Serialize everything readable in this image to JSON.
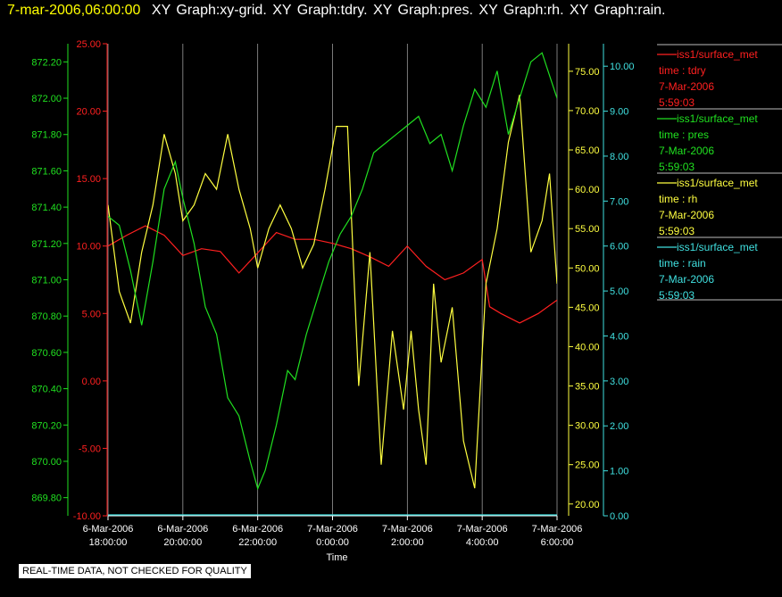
{
  "header": {
    "timestamp": "7-mar-2006,06:00:00",
    "graphs": "XY Graph:xy-grid.  XY Graph:tdry.  XY Graph:pres.  XY Graph:rh.  XY Graph:rain."
  },
  "footer": {
    "quality_note": "REAL-TIME DATA, NOT CHECKED FOR QUALITY"
  },
  "chart_data": {
    "type": "line",
    "title": "",
    "xlabel": "Time",
    "x_ticks": [
      {
        "line1": "6-Mar-2006",
        "line2": "18:00:00"
      },
      {
        "line1": "6-Mar-2006",
        "line2": "20:00:00"
      },
      {
        "line1": "6-Mar-2006",
        "line2": "22:00:00"
      },
      {
        "line1": "7-Mar-2006",
        "line2": "0:00:00"
      },
      {
        "line1": "7-Mar-2006",
        "line2": "2:00:00"
      },
      {
        "line1": "7-Mar-2006",
        "line2": "4:00:00"
      },
      {
        "line1": "7-Mar-2006",
        "line2": "6:00:00"
      }
    ],
    "xlim": [
      0,
      12
    ],
    "grid": "vertical",
    "axes": {
      "tdry": {
        "color": "#ff2020",
        "ylim": [
          -10,
          25
        ],
        "ticks": [
          "-10.00",
          "-5.00",
          "0.00",
          "5.00",
          "10.00",
          "15.00",
          "20.00",
          "25.00"
        ]
      },
      "pres": {
        "color": "#20e020",
        "ylim": [
          869.7,
          872.3
        ],
        "ticks": [
          "869.80",
          "870.00",
          "870.20",
          "870.40",
          "870.60",
          "870.80",
          "871.00",
          "871.20",
          "871.40",
          "871.60",
          "871.80",
          "872.00",
          "872.20"
        ]
      },
      "rh": {
        "color": "#ffff40",
        "ylim": [
          18.5,
          78.5
        ],
        "ticks": [
          "20.00",
          "25.00",
          "30.00",
          "35.00",
          "40.00",
          "45.00",
          "50.00",
          "55.00",
          "60.00",
          "65.00",
          "70.00",
          "75.00"
        ]
      },
      "rain": {
        "color": "#40e0e0",
        "ylim": [
          0,
          10.5
        ],
        "ticks": [
          "0.00",
          "1.00",
          "2.00",
          "3.00",
          "4.00",
          "5.00",
          "6.00",
          "7.00",
          "8.00",
          "9.00",
          "10.00"
        ]
      }
    },
    "legend": [
      {
        "name": "iss1/surface_met",
        "var": "time : tdry",
        "date": "7-Mar-2006",
        "time": "5:59:03",
        "color": "#ff2020"
      },
      {
        "name": "iss1/surface_met",
        "var": "time : pres",
        "date": "7-Mar-2006",
        "time": "5:59:03",
        "color": "#20e020"
      },
      {
        "name": "iss1/surface_met",
        "var": "time : rh",
        "date": "7-Mar-2006",
        "time": "5:59:03",
        "color": "#ffff40"
      },
      {
        "name": "iss1/surface_met",
        "var": "time : rain",
        "date": "7-Mar-2006",
        "time": "5:59:03",
        "color": "#40e0e0"
      }
    ],
    "series": [
      {
        "axis": "tdry",
        "x": [
          0,
          0.5,
          1,
          1.5,
          2,
          2.5,
          3,
          3.5,
          4,
          4.5,
          5,
          5.5,
          6,
          6.5,
          7,
          7.5,
          8,
          8.5,
          9,
          9.5,
          10,
          10.2,
          10.5,
          11,
          11.5,
          12
        ],
        "y": [
          10,
          10.8,
          11.5,
          10.8,
          9.3,
          9.8,
          9.6,
          8,
          9.5,
          11,
          10.5,
          10.5,
          10.2,
          9.8,
          9.2,
          8.5,
          10,
          8.5,
          7.5,
          8,
          9,
          5.5,
          5,
          4.3,
          5,
          6
        ]
      },
      {
        "axis": "pres",
        "x": [
          0,
          0.3,
          0.6,
          0.9,
          1.2,
          1.5,
          1.8,
          2,
          2.3,
          2.6,
          2.9,
          3.2,
          3.5,
          3.8,
          4,
          4.2,
          4.5,
          4.8,
          5,
          5.3,
          5.6,
          5.9,
          6.2,
          6.5,
          6.8,
          7.1,
          7.4,
          7.7,
          8,
          8.3,
          8.6,
          8.9,
          9.2,
          9.5,
          9.8,
          10.1,
          10.4,
          10.7,
          11,
          11.3,
          11.6,
          12
        ],
        "y": [
          871.35,
          871.3,
          871.05,
          870.75,
          871.1,
          871.5,
          871.65,
          871.45,
          871.2,
          870.85,
          870.7,
          870.35,
          870.25,
          870.0,
          869.85,
          869.95,
          870.2,
          870.5,
          870.45,
          870.7,
          870.9,
          871.1,
          871.25,
          871.35,
          871.5,
          871.7,
          871.75,
          871.8,
          871.85,
          871.9,
          871.75,
          871.8,
          871.6,
          871.85,
          872.05,
          871.95,
          872.15,
          871.8,
          872.0,
          872.2,
          872.25,
          872.0
        ]
      },
      {
        "axis": "rh",
        "x": [
          0,
          0.3,
          0.6,
          0.9,
          1.2,
          1.5,
          1.8,
          2,
          2.3,
          2.6,
          2.9,
          3.2,
          3.5,
          3.8,
          4,
          4.3,
          4.6,
          4.9,
          5.2,
          5.5,
          5.8,
          6.1,
          6.4,
          6.7,
          7,
          7.3,
          7.6,
          7.9,
          8.1,
          8.3,
          8.5,
          8.7,
          8.9,
          9.2,
          9.5,
          9.8,
          10.1,
          10.4,
          10.7,
          11,
          11.3,
          11.6,
          11.8,
          12
        ],
        "y": [
          58,
          47,
          43,
          52,
          58,
          67,
          62,
          56,
          58,
          62,
          60,
          67,
          60,
          55,
          50,
          55,
          58,
          55,
          50,
          53,
          60,
          68,
          68,
          35,
          52,
          25,
          42,
          32,
          42,
          32,
          25,
          48,
          38,
          45,
          28,
          22,
          48,
          55,
          66,
          72,
          52,
          56,
          62,
          48
        ]
      },
      {
        "axis": "rain",
        "x": [
          0,
          12
        ],
        "y": [
          0.02,
          0.02
        ]
      }
    ]
  }
}
